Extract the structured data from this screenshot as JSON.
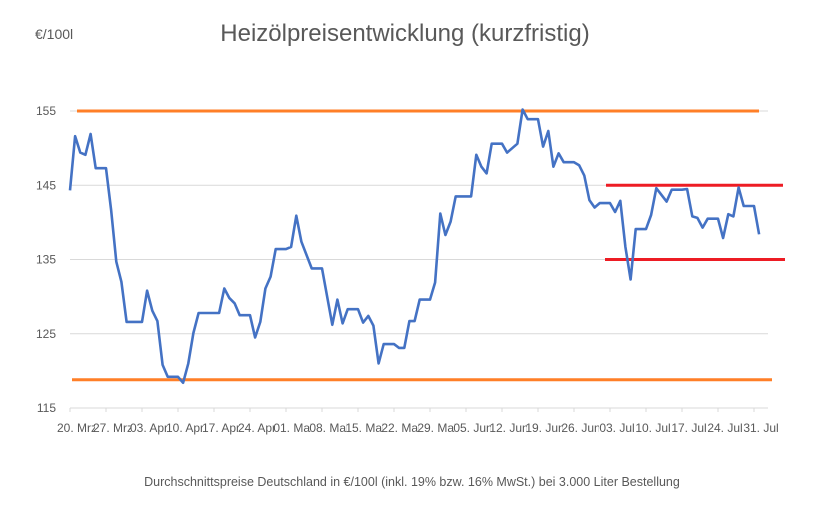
{
  "chart_data": {
    "type": "line",
    "title": "Heizölpreisentwicklung (kurzfristig)",
    "ylabel": "€/100l",
    "caption": "Durchschnittspreise Deutschland in €/100l (inkl. 19% bzw. 16%  MwSt.) bei 3.000 Liter Bestellung",
    "ylim": [
      115,
      155
    ],
    "yticks": [
      "115",
      "125",
      "135",
      "145",
      "155"
    ],
    "grid": true,
    "legend": "none",
    "xtick_labels": [
      "20. Mrz",
      "27. Mrz",
      "03. Apr",
      "10. Apr",
      "17. Apr",
      "24. Apr",
      "01. Mai",
      "08. Mai",
      "15. Mai",
      "22. Mai",
      "29. Mai",
      "05. Jun",
      "12. Jun",
      "19. Jun",
      "26. Jun",
      "03. Jul",
      "10. Jul",
      "17. Jul",
      "24. Jul",
      "31. Jul"
    ],
    "series": [
      {
        "color": "#4472C4",
        "points": [
          [
            "03-20",
            144.3
          ],
          [
            "03-21",
            151.6
          ],
          [
            "03-22",
            149.4
          ],
          [
            "03-23",
            149.1
          ],
          [
            "03-24",
            151.9
          ],
          [
            "03-25",
            147.3
          ],
          [
            "03-27",
            147.3
          ],
          [
            "03-28",
            141.7
          ],
          [
            "03-29",
            134.7
          ],
          [
            "03-30",
            132.0
          ],
          [
            "03-31",
            126.6
          ],
          [
            "04-03",
            126.6
          ],
          [
            "04-04",
            130.8
          ],
          [
            "04-05",
            128.1
          ],
          [
            "04-06",
            126.7
          ],
          [
            "04-07",
            120.8
          ],
          [
            "04-08",
            119.2
          ],
          [
            "04-10",
            119.2
          ],
          [
            "04-11",
            118.4
          ],
          [
            "04-12",
            121.0
          ],
          [
            "04-13",
            125.1
          ],
          [
            "04-14",
            127.8
          ],
          [
            "04-18",
            127.8
          ],
          [
            "04-19",
            131.1
          ],
          [
            "04-20",
            129.8
          ],
          [
            "04-21",
            129.1
          ],
          [
            "04-22",
            127.5
          ],
          [
            "04-24",
            127.5
          ],
          [
            "04-25",
            124.5
          ],
          [
            "04-26",
            126.6
          ],
          [
            "04-27",
            131.1
          ],
          [
            "04-28",
            132.7
          ],
          [
            "04-29",
            136.4
          ],
          [
            "05-01",
            136.4
          ],
          [
            "05-02",
            136.7
          ],
          [
            "05-03",
            140.9
          ],
          [
            "05-04",
            137.4
          ],
          [
            "05-06",
            133.8
          ],
          [
            "05-08",
            133.8
          ],
          [
            "05-10",
            126.2
          ],
          [
            "05-11",
            129.6
          ],
          [
            "05-12",
            126.4
          ],
          [
            "05-13",
            128.3
          ],
          [
            "05-15",
            128.3
          ],
          [
            "05-16",
            126.5
          ],
          [
            "05-17",
            127.4
          ],
          [
            "05-18",
            126.1
          ],
          [
            "05-19",
            121.0
          ],
          [
            "05-20",
            123.6
          ],
          [
            "05-22",
            123.6
          ],
          [
            "05-23",
            123.1
          ],
          [
            "05-24",
            123.1
          ],
          [
            "05-25",
            126.7
          ],
          [
            "05-26",
            126.7
          ],
          [
            "05-27",
            129.6
          ],
          [
            "05-29",
            129.6
          ],
          [
            "05-30",
            131.9
          ],
          [
            "05-31",
            141.2
          ],
          [
            "06-01",
            138.3
          ],
          [
            "06-02",
            140.1
          ],
          [
            "06-03",
            143.5
          ],
          [
            "06-06",
            143.5
          ],
          [
            "06-07",
            149.1
          ],
          [
            "06-08",
            147.5
          ],
          [
            "06-09",
            146.6
          ],
          [
            "06-10",
            150.6
          ],
          [
            "06-12",
            150.6
          ],
          [
            "06-13",
            149.4
          ],
          [
            "06-15",
            150.6
          ],
          [
            "06-16",
            155.2
          ],
          [
            "06-17",
            153.9
          ],
          [
            "06-19",
            153.9
          ],
          [
            "06-20",
            150.2
          ],
          [
            "06-21",
            152.3
          ],
          [
            "06-22",
            147.5
          ],
          [
            "06-23",
            149.3
          ],
          [
            "06-24",
            148.1
          ],
          [
            "06-26",
            148.1
          ],
          [
            "06-27",
            147.7
          ],
          [
            "06-28",
            146.3
          ],
          [
            "06-29",
            143.0
          ],
          [
            "06-30",
            142.0
          ],
          [
            "07-01",
            142.6
          ],
          [
            "07-03",
            142.6
          ],
          [
            "07-04",
            141.4
          ],
          [
            "07-05",
            142.9
          ],
          [
            "07-06",
            136.7
          ],
          [
            "07-07",
            132.3
          ],
          [
            "07-08",
            139.1
          ],
          [
            "07-10",
            139.1
          ],
          [
            "07-11",
            141.0
          ],
          [
            "07-12",
            144.6
          ],
          [
            "07-14",
            142.8
          ],
          [
            "07-15",
            144.4
          ],
          [
            "07-17",
            144.4
          ],
          [
            "07-18",
            144.5
          ],
          [
            "07-19",
            140.8
          ],
          [
            "07-20",
            140.6
          ],
          [
            "07-21",
            139.3
          ],
          [
            "07-22",
            140.5
          ],
          [
            "07-24",
            140.5
          ],
          [
            "07-25",
            137.9
          ],
          [
            "07-26",
            141.1
          ],
          [
            "07-27",
            140.8
          ],
          [
            "07-28",
            144.7
          ],
          [
            "07-29",
            142.2
          ],
          [
            "07-31",
            142.2
          ],
          [
            "08-01",
            138.4
          ]
        ]
      }
    ],
    "reference_lines": [
      {
        "value": 155,
        "color": "#FF7F27"
      },
      {
        "value": 118.8,
        "color": "#FF7F27"
      },
      {
        "value": 145,
        "color": "#ED1C24"
      },
      {
        "value": 135,
        "color": "#ED1C24"
      }
    ]
  }
}
